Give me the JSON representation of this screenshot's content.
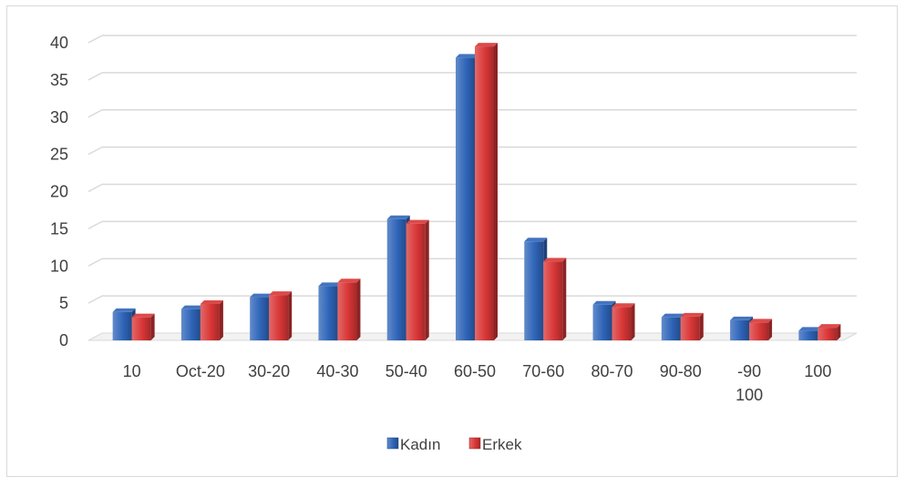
{
  "chart_data": {
    "type": "bar",
    "title": "",
    "xlabel": "",
    "ylabel": "",
    "ylim": [
      0,
      40
    ],
    "yticks": [
      0,
      5,
      10,
      15,
      20,
      25,
      30,
      35,
      40
    ],
    "grid": true,
    "legend_position": "bottom",
    "categories": [
      [
        "10"
      ],
      [
        "Oct-20"
      ],
      [
        "30-20"
      ],
      [
        "40-30"
      ],
      [
        "50-40"
      ],
      [
        "60-50"
      ],
      [
        "70-60"
      ],
      [
        "80-70"
      ],
      [
        "90-80"
      ],
      [
        "-90",
        "100"
      ],
      [
        "100"
      ]
    ],
    "series": [
      {
        "name": "Kadın",
        "color": "#2e64b8",
        "values": [
          3.8,
          4.2,
          5.8,
          7.3,
          16.3,
          38,
          13.3,
          4.8,
          3.1,
          2.7,
          1.3
        ]
      },
      {
        "name": "Erkek",
        "color": "#d93636",
        "values": [
          3.1,
          4.9,
          6.1,
          7.8,
          15.7,
          39.5,
          10.6,
          4.5,
          3.2,
          2.4,
          1.7
        ]
      }
    ]
  }
}
